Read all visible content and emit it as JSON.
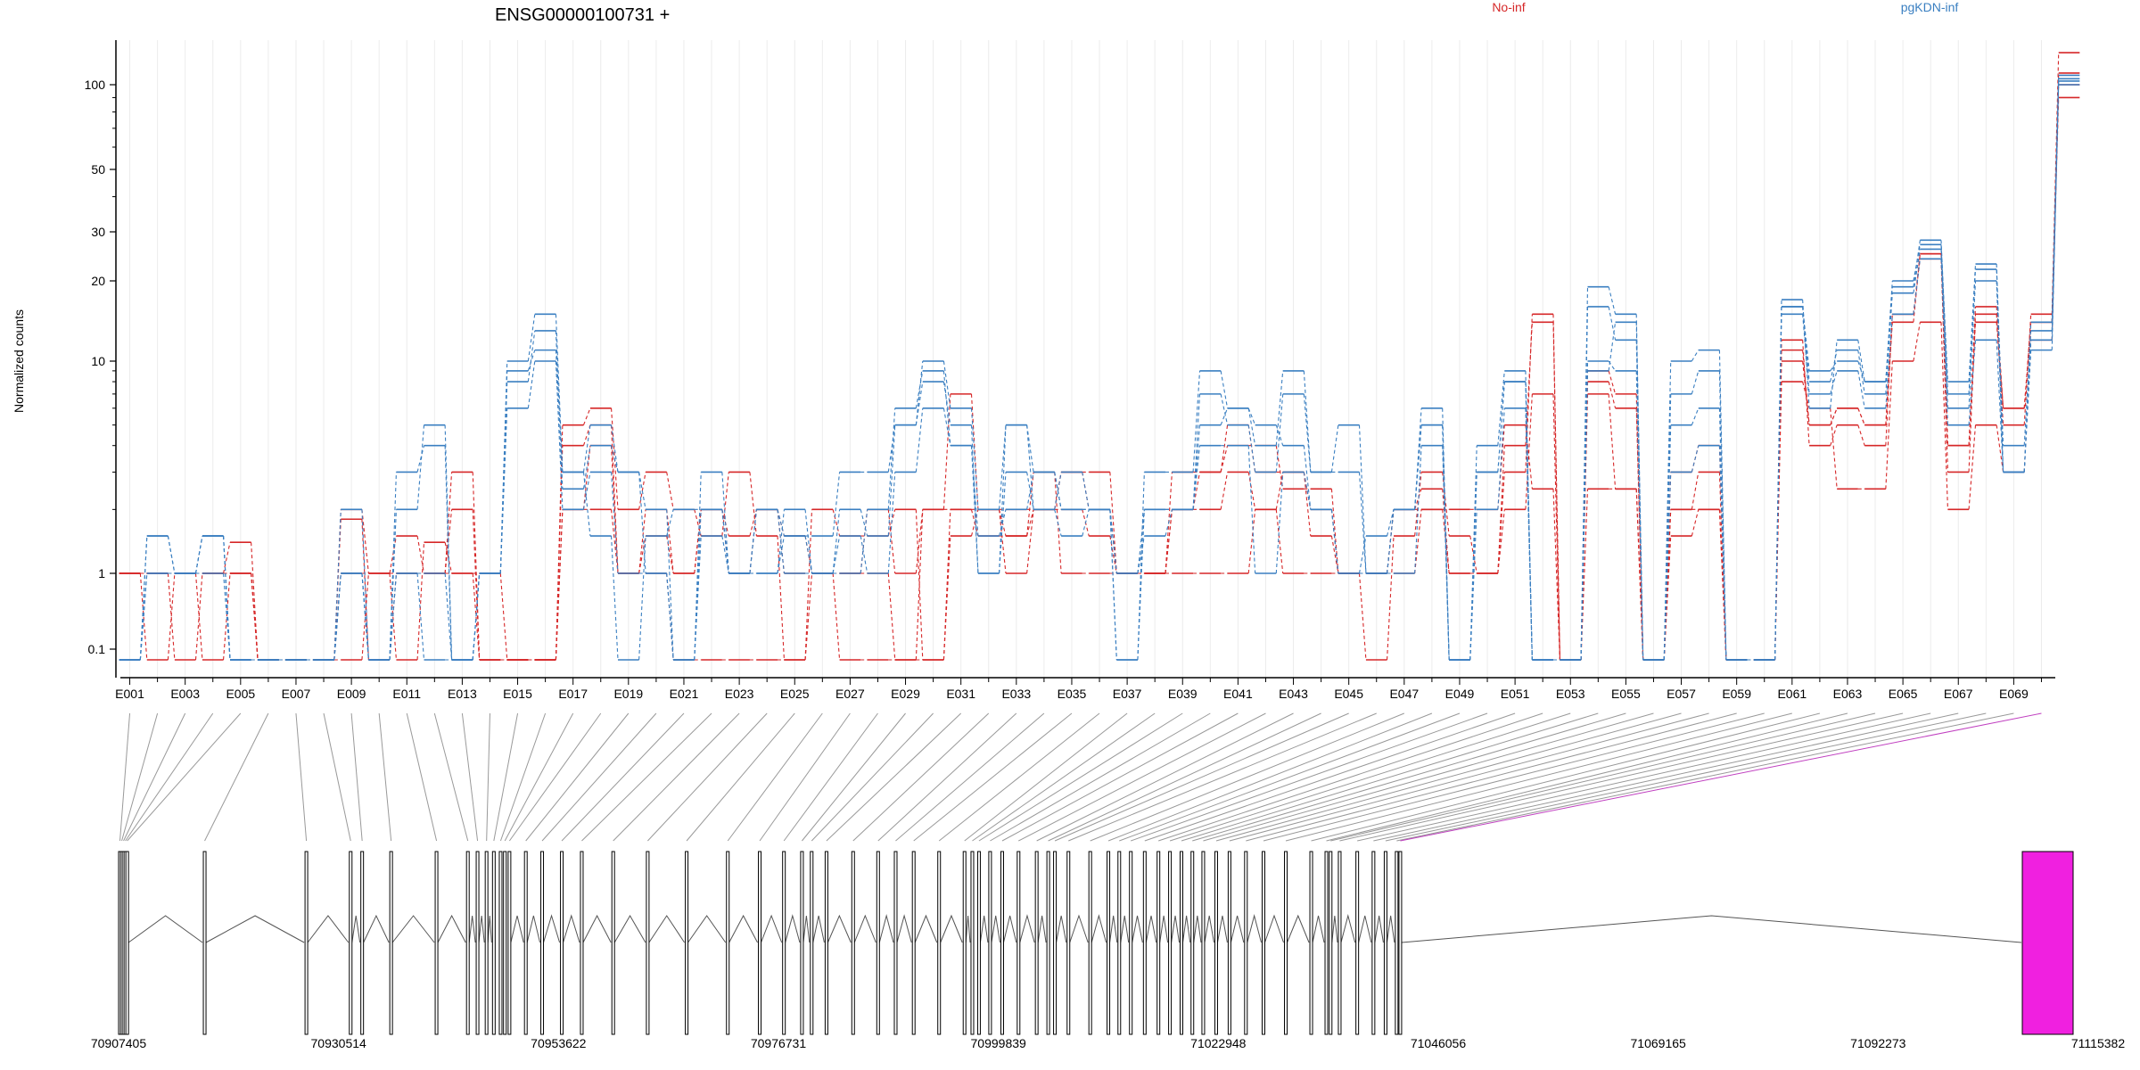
{
  "chart_data": {
    "type": "line",
    "title": "ENSG00000100731 +",
    "ylabel": "Normalized counts",
    "y_scale": "log",
    "yticks": [
      0.1,
      1,
      10,
      20,
      30,
      50,
      100
    ],
    "ytick_labels": [
      "0.1",
      "1",
      "10",
      "20",
      "30",
      "50",
      "100"
    ],
    "exon_labels": [
      "E001",
      "E003",
      "E005",
      "E007",
      "E009",
      "E011",
      "E013",
      "E015",
      "E017",
      "E019",
      "E021",
      "E023",
      "E025",
      "E027",
      "E029",
      "E031",
      "E033",
      "E035",
      "E037",
      "E039",
      "E041",
      "E043",
      "E045",
      "E047",
      "E049",
      "E051",
      "E053",
      "E055",
      "E057",
      "E059",
      "E061",
      "E063",
      "E065",
      "E067",
      "E069"
    ],
    "genomic_ticks": [
      "70907405",
      "70930514",
      "70953622",
      "70976731",
      "70999839",
      "71022948",
      "71046056",
      "71069165",
      "71092273",
      "71115382"
    ],
    "legend": [
      {
        "name": "No-inf",
        "color": "#d62728"
      },
      {
        "name": "pgKDN-inf",
        "color": "#3a7fc1"
      }
    ],
    "series": [
      {
        "name": "No-inf",
        "color": "#d62728",
        "values": [
          1,
          1,
          0.05,
          1,
          1.4,
          0.05,
          0.05,
          0.05,
          0.05,
          1,
          0.05,
          1.4,
          1,
          1,
          0.05,
          0.05,
          2,
          4,
          1,
          1.5,
          1,
          2,
          1.5,
          2,
          1.5,
          1,
          1,
          1,
          0.05,
          0.05,
          2,
          2,
          2,
          2,
          3,
          2,
          1,
          1,
          2,
          2,
          3,
          2,
          3,
          1.5,
          1,
          1,
          2,
          2.5,
          1,
          1,
          3,
          15,
          0.05,
          9,
          7,
          0.05,
          1.5,
          2,
          0.05,
          0.05,
          10,
          5,
          6,
          5,
          14,
          25,
          4,
          14,
          6,
          14,
          110
        ]
      },
      {
        "name": "No-inf",
        "color": "#d62728",
        "values": [
          1,
          0.05,
          1,
          0.05,
          1,
          0.05,
          0.05,
          0.05,
          1.8,
          0.05,
          1,
          1,
          3,
          0.05,
          0.05,
          0.05,
          5,
          6,
          2,
          3,
          2,
          1.5,
          3,
          1.5,
          0.05,
          2,
          1.5,
          1.5,
          2,
          0.05,
          1.5,
          2,
          1.5,
          3,
          1,
          1,
          1,
          1,
          3,
          3,
          4,
          4,
          2.5,
          2.5,
          1,
          0.05,
          1.5,
          3,
          1.5,
          1,
          2,
          7,
          0.05,
          7,
          2.5,
          0.05,
          2,
          3,
          0.05,
          0.05,
          12,
          4,
          5,
          4,
          15,
          24,
          3,
          15,
          5,
          15,
          130
        ]
      },
      {
        "name": "No-inf",
        "color": "#d62728",
        "values": [
          1,
          1,
          1,
          1,
          1,
          0.05,
          0.05,
          0.05,
          1,
          1,
          1,
          1,
          1,
          0.05,
          0.05,
          0.05,
          2,
          2,
          1,
          1,
          0.05,
          0.05,
          0.05,
          0.05,
          0.05,
          1,
          0.05,
          0.05,
          0.05,
          2,
          2,
          1.5,
          1.5,
          2,
          2,
          1.5,
          1,
          1,
          1,
          1,
          1,
          2,
          1,
          1,
          1,
          1,
          1,
          2,
          2,
          2,
          5,
          2.5,
          0.05,
          2.5,
          2.5,
          0.05,
          2,
          2,
          0.05,
          0.05,
          8,
          6,
          2.5,
          2.5,
          10,
          14,
          2,
          5,
          3,
          12,
          100
        ]
      },
      {
        "name": "No-inf",
        "color": "#d62728",
        "values": [
          1,
          1,
          1,
          1,
          1,
          0.05,
          0.05,
          0.05,
          2,
          1,
          1.5,
          1,
          2,
          0.05,
          0.05,
          0.05,
          4,
          5,
          1,
          2,
          1,
          2,
          1,
          2,
          1,
          1,
          1,
          2,
          1,
          2,
          7,
          2,
          1,
          2,
          3,
          3,
          1,
          1,
          2,
          3,
          5,
          3,
          3,
          2,
          1,
          1,
          2,
          2,
          1,
          1,
          4,
          14,
          0.05,
          8,
          6,
          0.05,
          3,
          4,
          0.05,
          0.05,
          11,
          5,
          6,
          5,
          15,
          25,
          4,
          16,
          6,
          14,
          90
        ]
      },
      {
        "name": "pgKDN-inf",
        "color": "#3a7fc1",
        "values": [
          0.05,
          1.5,
          1,
          1.5,
          0.05,
          0.05,
          0.05,
          0.05,
          1,
          0.05,
          1,
          0.05,
          0.05,
          1,
          9,
          11,
          3,
          1.5,
          0.05,
          1.5,
          2,
          2,
          1,
          2,
          1,
          1,
          1,
          2,
          6,
          9,
          4,
          1.5,
          2,
          3,
          2,
          2,
          0.05,
          2,
          2,
          5,
          6,
          5,
          4,
          2,
          1,
          1.5,
          2,
          5,
          0.05,
          3,
          8,
          0.05,
          0.05,
          9,
          14,
          0.05,
          5,
          6,
          0.05,
          0.05,
          16,
          9,
          10,
          8,
          20,
          27,
          8,
          23,
          3,
          14,
          105
        ]
      },
      {
        "name": "pgKDN-inf",
        "color": "#3a7fc1",
        "values": [
          0.05,
          1.5,
          1,
          1.5,
          0.05,
          0.05,
          0.05,
          0.05,
          2,
          0.05,
          3,
          4,
          0.05,
          1,
          10,
          15,
          3,
          5,
          3,
          2,
          0.05,
          3,
          1,
          2,
          1.5,
          1.5,
          3,
          3,
          5,
          10,
          6,
          2,
          5,
          2,
          3,
          2,
          0.05,
          3,
          3,
          9,
          6,
          4,
          9,
          3,
          5,
          1,
          2,
          6,
          0.05,
          4,
          9,
          0.05,
          0.05,
          19,
          15,
          0.05,
          10,
          11,
          0.05,
          0.05,
          17,
          6,
          12,
          8,
          19,
          28,
          7,
          22,
          4,
          13,
          108
        ]
      },
      {
        "name": "pgKDN-inf",
        "color": "#3a7fc1",
        "values": [
          0.05,
          1,
          1,
          1.5,
          0.05,
          0.05,
          0.05,
          0.05,
          1,
          0.05,
          2,
          5,
          0.05,
          1,
          8,
          13,
          2.5,
          4,
          3,
          1,
          0.05,
          2,
          1,
          1,
          2,
          1,
          2,
          1.5,
          5,
          8,
          5,
          1,
          5,
          3,
          2,
          2,
          1,
          2,
          2,
          7,
          5,
          3,
          7,
          3,
          3,
          1,
          2,
          5,
          0.05,
          3,
          8,
          0.05,
          0.05,
          16,
          12,
          0.05,
          7,
          9,
          0.05,
          0.05,
          16,
          8,
          11,
          7,
          18,
          26,
          6,
          20,
          3,
          12,
          103
        ]
      },
      {
        "name": "pgKDN-inf",
        "color": "#3a7fc1",
        "values": [
          0.05,
          1,
          1,
          1,
          0.05,
          0.05,
          0.05,
          0.05,
          1,
          0.05,
          1,
          1,
          0.05,
          1,
          6,
          10,
          2,
          3,
          1,
          1,
          0.05,
          1.5,
          1,
          1,
          1.5,
          1,
          1.5,
          1,
          3,
          6,
          4,
          1,
          3,
          2,
          1.5,
          2,
          1,
          1.5,
          2,
          4,
          4,
          1,
          3,
          2,
          1,
          1,
          1,
          4,
          0.05,
          2,
          6,
          0.05,
          0.05,
          10,
          9,
          0.05,
          3,
          4,
          0.05,
          0.05,
          15,
          7,
          9,
          6,
          15,
          24,
          5,
          12,
          3,
          11,
          100
        ]
      }
    ]
  }
}
